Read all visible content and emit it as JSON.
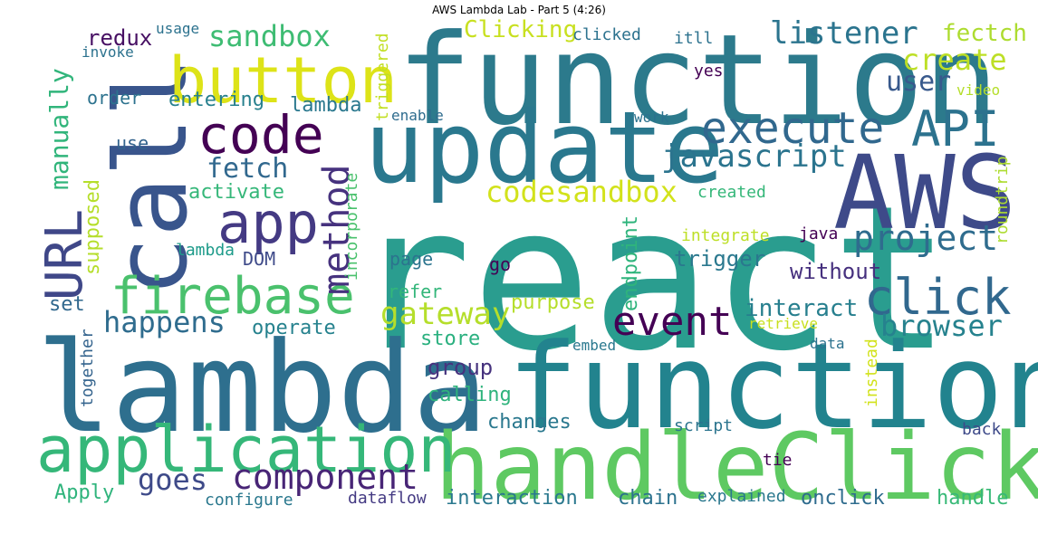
{
  "title": "AWS Lambda Lab - Part 5 (4:26)",
  "words": [
    {
      "text": "react",
      "color": "#2a9d8f"
    },
    {
      "text": "function",
      "color": "#2c7a8c"
    },
    {
      "text": "function",
      "color": "#22838e"
    },
    {
      "text": "lambda",
      "color": "#2e6f8e"
    },
    {
      "text": "handleClick",
      "color": "#5ec962"
    },
    {
      "text": "update",
      "color": "#2a788e"
    },
    {
      "text": "AWS",
      "color": "#3e4a89"
    },
    {
      "text": "call",
      "color": "#39558c"
    },
    {
      "text": "application",
      "color": "#35b779"
    },
    {
      "text": "button",
      "color": "#dde318"
    },
    {
      "text": "URL",
      "color": "#3f4788"
    },
    {
      "text": "code",
      "color": "#440154"
    },
    {
      "text": "app",
      "color": "#443a83"
    },
    {
      "text": "firebase",
      "color": "#4ac16d"
    },
    {
      "text": "execute",
      "color": "#31688e"
    },
    {
      "text": "API",
      "color": "#2c728e"
    },
    {
      "text": "click",
      "color": "#31688e"
    },
    {
      "text": "event",
      "color": "#440154"
    },
    {
      "text": "component",
      "color": "#482576"
    },
    {
      "text": "project",
      "color": "#2f6c8e"
    },
    {
      "text": "listener",
      "color": "#2b748e"
    },
    {
      "text": "sandbox",
      "color": "#3ebc73"
    },
    {
      "text": "method",
      "color": "#46327e"
    },
    {
      "text": "create",
      "color": "#bddf26"
    },
    {
      "text": "javascript",
      "color": "#2b748e"
    },
    {
      "text": "gateway",
      "color": "#b5de2b"
    },
    {
      "text": "browser",
      "color": "#26828e"
    },
    {
      "text": "codesandbox",
      "color": "#d2e21b"
    },
    {
      "text": "happens",
      "color": "#2f6c8e"
    },
    {
      "text": "fetch",
      "color": "#31688e"
    },
    {
      "text": "user",
      "color": "#38598c"
    },
    {
      "text": "manually",
      "color": "#31b57b"
    },
    {
      "text": "goes",
      "color": "#3e4a89"
    },
    {
      "text": "interact",
      "color": "#277f8e"
    },
    {
      "text": "fectch",
      "color": "#addc30"
    },
    {
      "text": "Clicking",
      "color": "#c8e020"
    },
    {
      "text": "redux",
      "color": "#471063"
    },
    {
      "text": "trigger",
      "color": "#2a788e"
    },
    {
      "text": "without",
      "color": "#46307e"
    },
    {
      "text": "activate",
      "color": "#35b779"
    },
    {
      "text": "entering",
      "color": "#27808e"
    },
    {
      "text": "group",
      "color": "#46327e"
    },
    {
      "text": "endpoint",
      "color": "#2fb47c"
    },
    {
      "text": "changes",
      "color": "#2a788e"
    },
    {
      "text": "supposed",
      "color": "#b5de2b"
    },
    {
      "text": "purpose",
      "color": "#b5de2b"
    },
    {
      "text": "operate",
      "color": "#26828e"
    },
    {
      "text": "lambda",
      "color": "#2a788e"
    },
    {
      "text": "store",
      "color": "#2ab07f"
    },
    {
      "text": "calling",
      "color": "#2eb37c"
    },
    {
      "text": "interaction",
      "color": "#2a788e"
    },
    {
      "text": "chain",
      "color": "#2c728e"
    },
    {
      "text": "onclick",
      "color": "#2f6c8e"
    },
    {
      "text": "handle",
      "color": "#38b977"
    },
    {
      "text": "Apply",
      "color": "#2fb47c"
    },
    {
      "text": "DOM",
      "color": "#3e4a89"
    },
    {
      "text": "go",
      "color": "#440154"
    },
    {
      "text": "page",
      "color": "#2b748e"
    },
    {
      "text": "refer",
      "color": "#33b67a"
    },
    {
      "text": "set",
      "color": "#31688e"
    },
    {
      "text": "order",
      "color": "#2c728e"
    },
    {
      "text": "use",
      "color": "#33638d"
    },
    {
      "text": "lambda",
      "color": "#1e9b8a"
    },
    {
      "text": "triggered",
      "color": "#c2df23"
    },
    {
      "text": "incorporate",
      "color": "#4ac16d"
    },
    {
      "text": "roundtrip",
      "color": "#addc30"
    },
    {
      "text": "instead",
      "color": "#d2e21b"
    },
    {
      "text": "together",
      "color": "#33638d"
    },
    {
      "text": "java",
      "color": "#440154"
    },
    {
      "text": "integrate",
      "color": "#bddf26"
    },
    {
      "text": "created",
      "color": "#35b779"
    },
    {
      "text": "retrieve",
      "color": "#c8e020"
    },
    {
      "text": "embed",
      "color": "#2a788e"
    },
    {
      "text": "data",
      "color": "#2c728e"
    },
    {
      "text": "script",
      "color": "#2b748e"
    },
    {
      "text": "back",
      "color": "#3e4a89"
    },
    {
      "text": "tie",
      "color": "#440154"
    },
    {
      "text": "explained",
      "color": "#2a788e"
    },
    {
      "text": "configure",
      "color": "#2a788e"
    },
    {
      "text": "dataflow",
      "color": "#443a83"
    },
    {
      "text": "video",
      "color": "#b5de2b"
    },
    {
      "text": "yes",
      "color": "#440154"
    },
    {
      "text": "itll",
      "color": "#2c728e"
    },
    {
      "text": "clicked",
      "color": "#2c728e"
    },
    {
      "text": "usage",
      "color": "#2c728e"
    },
    {
      "text": "invoke",
      "color": "#2c728e"
    },
    {
      "text": "enable",
      "color": "#2f6c8e"
    },
    {
      "text": "work",
      "color": "#2c728e"
    },
    {
      "text": "lambda",
      "color": "#2a788e"
    }
  ]
}
